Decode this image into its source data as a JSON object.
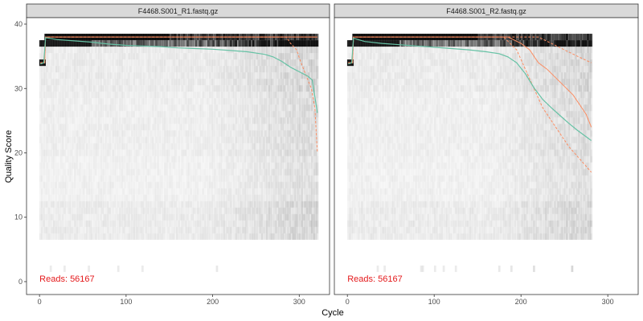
{
  "chart_data": {
    "type": "heatmap",
    "xlabel": "Cycle",
    "ylabel": "Quality Score",
    "xlim": [
      -15,
      335
    ],
    "ylim": [
      -2,
      41
    ],
    "x_ticks": [
      0,
      100,
      200,
      300
    ],
    "y_ticks": [
      0,
      10,
      20,
      30,
      40
    ],
    "grid": false,
    "colors": {
      "mean_line": "#66c2a5",
      "quantile_lines": "#fc8d62",
      "reads_text": "#e41a1c",
      "border": "#333333",
      "strip_bg": "#d9d9d9"
    },
    "panels": [
      {
        "title": "F4468.S001_R1.fastq.gz",
        "reads_label": "Reads:  56167",
        "cycles": 321,
        "mean": [
          [
            1,
            33.8
          ],
          [
            5,
            34.0
          ],
          [
            7,
            37.9
          ],
          [
            20,
            37.6
          ],
          [
            40,
            37.4
          ],
          [
            60,
            37.2
          ],
          [
            80,
            36.9
          ],
          [
            100,
            36.7
          ],
          [
            120,
            36.6
          ],
          [
            140,
            36.5
          ],
          [
            160,
            36.3
          ],
          [
            180,
            36.2
          ],
          [
            200,
            36.1
          ],
          [
            220,
            35.9
          ],
          [
            240,
            35.7
          ],
          [
            260,
            35.3
          ],
          [
            270,
            34.9
          ],
          [
            280,
            34.2
          ],
          [
            290,
            33.3
          ],
          [
            300,
            32.6
          ],
          [
            310,
            31.9
          ],
          [
            315,
            31.3
          ],
          [
            321,
            26.2
          ]
        ],
        "median": [
          [
            1,
            34
          ],
          [
            6,
            34
          ],
          [
            7,
            38
          ],
          [
            321,
            38
          ]
        ],
        "q25": [
          [
            1,
            34
          ],
          [
            6,
            34
          ],
          [
            7,
            38
          ],
          [
            285,
            38
          ],
          [
            290,
            37
          ],
          [
            297,
            36
          ],
          [
            302,
            34
          ],
          [
            308,
            32
          ],
          [
            314,
            30
          ],
          [
            318,
            27
          ],
          [
            321,
            20
          ]
        ],
        "q75": [
          [
            1,
            34
          ],
          [
            6,
            34
          ],
          [
            7,
            38
          ],
          [
            321,
            38
          ]
        ]
      },
      {
        "title": "F4468.S001_R2.fastq.gz",
        "reads_label": "Reads:  56167",
        "cycles": 281,
        "mean": [
          [
            1,
            33.8
          ],
          [
            5,
            34.0
          ],
          [
            7,
            37.8
          ],
          [
            20,
            37.3
          ],
          [
            40,
            37.0
          ],
          [
            60,
            36.8
          ],
          [
            80,
            36.6
          ],
          [
            100,
            36.4
          ],
          [
            120,
            36.2
          ],
          [
            140,
            36.0
          ],
          [
            160,
            35.7
          ],
          [
            175,
            35.4
          ],
          [
            185,
            34.9
          ],
          [
            195,
            34.0
          ],
          [
            205,
            32.3
          ],
          [
            215,
            30.1
          ],
          [
            225,
            28.3
          ],
          [
            235,
            27.0
          ],
          [
            245,
            25.8
          ],
          [
            255,
            24.6
          ],
          [
            265,
            23.5
          ],
          [
            275,
            22.5
          ],
          [
            281,
            21.9
          ]
        ],
        "median": [
          [
            1,
            34
          ],
          [
            6,
            34
          ],
          [
            7,
            38
          ],
          [
            185,
            38
          ],
          [
            200,
            37
          ],
          [
            210,
            36
          ],
          [
            220,
            34
          ],
          [
            230,
            33
          ],
          [
            245,
            31
          ],
          [
            260,
            29
          ],
          [
            275,
            26
          ],
          [
            281,
            24
          ]
        ],
        "q25": [
          [
            1,
            34
          ],
          [
            6,
            34
          ],
          [
            7,
            38
          ],
          [
            180,
            38
          ],
          [
            195,
            36
          ],
          [
            205,
            33
          ],
          [
            215,
            30
          ],
          [
            225,
            27
          ],
          [
            235,
            25
          ],
          [
            245,
            23
          ],
          [
            255,
            21
          ],
          [
            268,
            19
          ],
          [
            281,
            17
          ]
        ],
        "q75": [
          [
            1,
            34
          ],
          [
            6,
            34
          ],
          [
            7,
            38
          ],
          [
            220,
            38
          ],
          [
            235,
            37
          ],
          [
            250,
            36
          ],
          [
            265,
            35
          ],
          [
            281,
            34
          ]
        ]
      }
    ]
  }
}
